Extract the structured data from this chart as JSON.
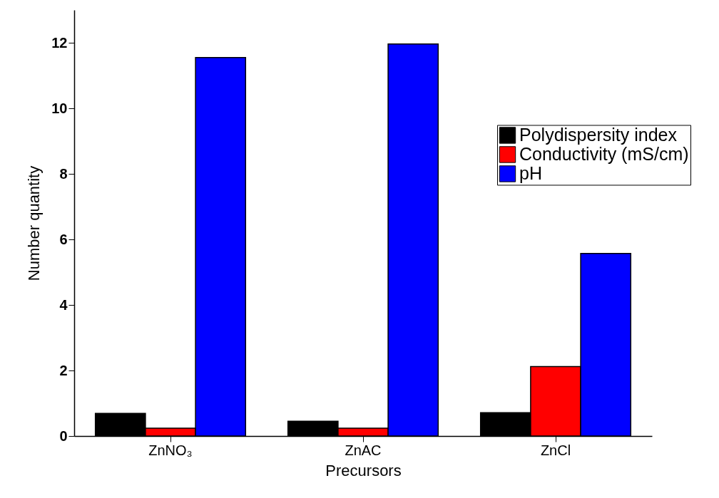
{
  "chart_data": {
    "type": "bar",
    "xlabel": "Precursors",
    "ylabel": "Number quantity",
    "categories": [
      "ZnNO₃",
      "ZnAC",
      "ZnCl"
    ],
    "series": [
      {
        "name": "Polydispersity index",
        "color": "#000000",
        "values": [
          0.69,
          0.45,
          0.71
        ]
      },
      {
        "name": "Conductivity (mS/cm)",
        "color": "#ff0000",
        "values": [
          0.24,
          0.24,
          2.12
        ]
      },
      {
        "name": "pH",
        "color": "#0000ff",
        "values": [
          11.55,
          11.96,
          5.57
        ]
      }
    ],
    "ylim": [
      0,
      13
    ],
    "yticks": [
      0,
      2,
      4,
      6,
      8,
      10,
      12
    ],
    "grid": false,
    "legend": "right"
  }
}
